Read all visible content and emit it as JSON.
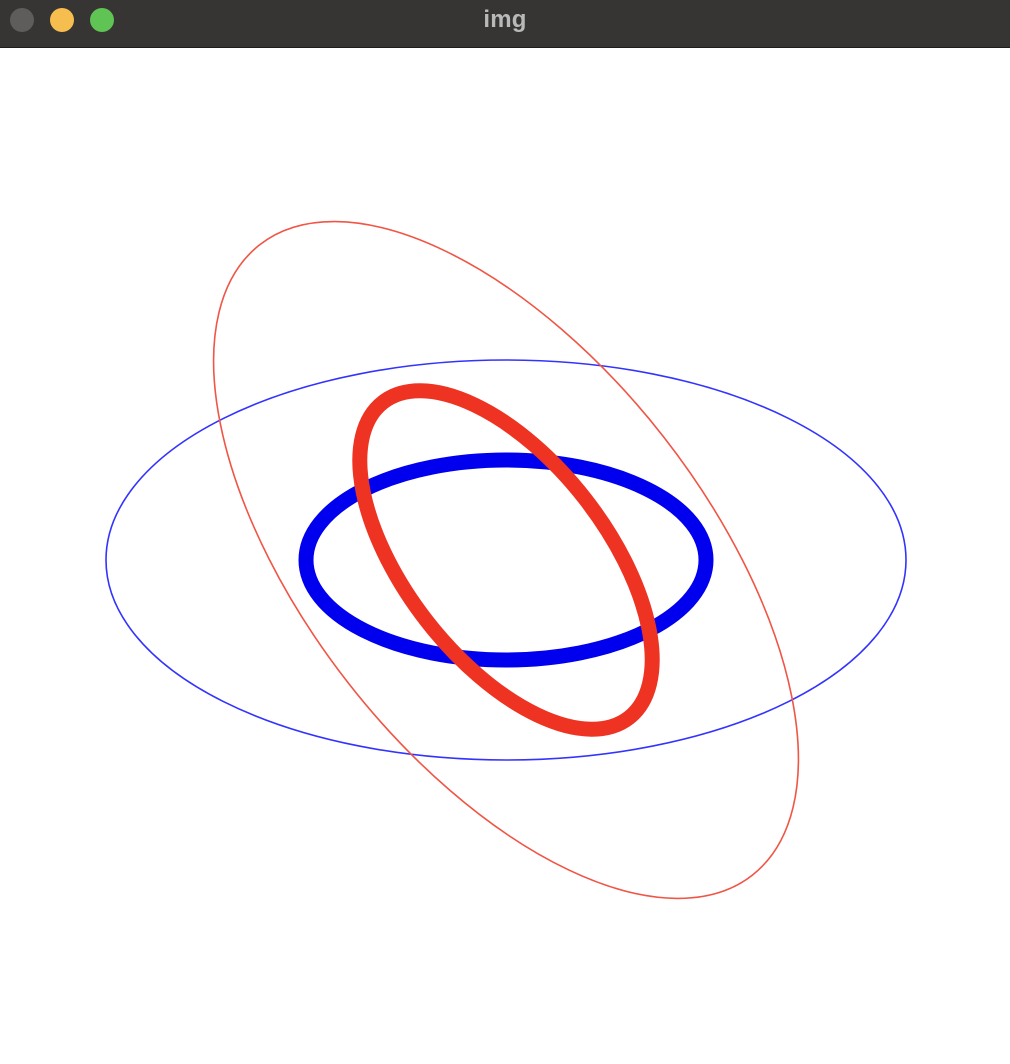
{
  "window": {
    "title": "img",
    "buttons": {
      "close_color": "#5e5d5c",
      "minimize_color": "#f6be4f",
      "zoom_color": "#5fc454"
    }
  },
  "canvas": {
    "background": "#ffffff",
    "ellipses": [
      {
        "name": "blue-ellipse-large-thin",
        "color": "#3333ff"
      },
      {
        "name": "blue-ellipse-small-thick",
        "color": "#0000ee"
      },
      {
        "name": "red-ellipse-large-thin",
        "color": "#f05545"
      },
      {
        "name": "red-ellipse-small-thick",
        "color": "#ee3322"
      }
    ]
  }
}
